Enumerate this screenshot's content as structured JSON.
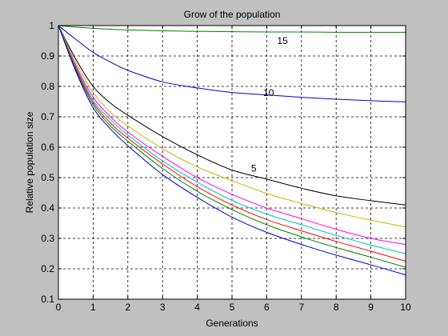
{
  "chart_data": {
    "type": "line",
    "title": "Grow of the population",
    "xlabel": "Generations",
    "ylabel": "Relative population size",
    "xlim": [
      0,
      10
    ],
    "ylim": [
      0.1,
      1
    ],
    "xticks": [
      "0",
      "1",
      "2",
      "3",
      "4",
      "5",
      "6",
      "7",
      "8",
      "9",
      "10"
    ],
    "yticks": [
      "0.1",
      "0.2",
      "0.3",
      "0.4",
      "0.5",
      "0.6",
      "0.7",
      "0.8",
      "0.9",
      "1"
    ],
    "grid": true,
    "x": [
      0,
      0.5,
      1,
      1.5,
      2,
      3,
      4,
      5,
      6,
      7,
      8,
      9,
      10
    ],
    "series": [
      {
        "color": "#008000",
        "values": [
          1.0,
          0.995,
          0.991,
          0.988,
          0.986,
          0.983,
          0.981,
          0.98,
          0.979,
          0.979,
          0.978,
          0.978,
          0.978
        ]
      },
      {
        "color": "#0000cc",
        "values": [
          1.0,
          0.955,
          0.912,
          0.88,
          0.853,
          0.815,
          0.795,
          0.78,
          0.772,
          0.764,
          0.758,
          0.753,
          0.749
        ]
      },
      {
        "color": "#000000",
        "values": [
          1.0,
          0.89,
          0.8,
          0.745,
          0.705,
          0.635,
          0.575,
          0.525,
          0.495,
          0.465,
          0.44,
          0.424,
          0.41
        ]
      },
      {
        "color": "#c8b400",
        "values": [
          1.0,
          0.88,
          0.78,
          0.715,
          0.67,
          0.595,
          0.535,
          0.49,
          0.448,
          0.415,
          0.385,
          0.36,
          0.338
        ]
      },
      {
        "color": "#ff00ff",
        "values": [
          1.0,
          0.87,
          0.765,
          0.7,
          0.65,
          0.57,
          0.5,
          0.445,
          0.4,
          0.365,
          0.33,
          0.3,
          0.28
        ]
      },
      {
        "color": "#00c0c0",
        "values": [
          1.0,
          0.865,
          0.755,
          0.69,
          0.64,
          0.555,
          0.485,
          0.425,
          0.38,
          0.345,
          0.31,
          0.278,
          0.25
        ]
      },
      {
        "color": "#ff0000",
        "values": [
          1.0,
          0.86,
          0.748,
          0.68,
          0.63,
          0.545,
          0.47,
          0.41,
          0.362,
          0.325,
          0.29,
          0.258,
          0.225
        ]
      },
      {
        "color": "#008000",
        "values": [
          1.0,
          0.855,
          0.74,
          0.67,
          0.62,
          0.53,
          0.455,
          0.395,
          0.345,
          0.305,
          0.27,
          0.238,
          0.205
        ]
      },
      {
        "color": "#0000cc",
        "values": [
          1.0,
          0.85,
          0.73,
          0.66,
          0.605,
          0.51,
          0.435,
          0.37,
          0.32,
          0.28,
          0.245,
          0.213,
          0.18
        ]
      }
    ],
    "annotations": [
      {
        "text": "15",
        "x": 6.3,
        "y": 0.95
      },
      {
        "text": "10",
        "x": 5.9,
        "y": 0.779
      },
      {
        "text": "5",
        "x": 5.55,
        "y": 0.53
      }
    ]
  }
}
